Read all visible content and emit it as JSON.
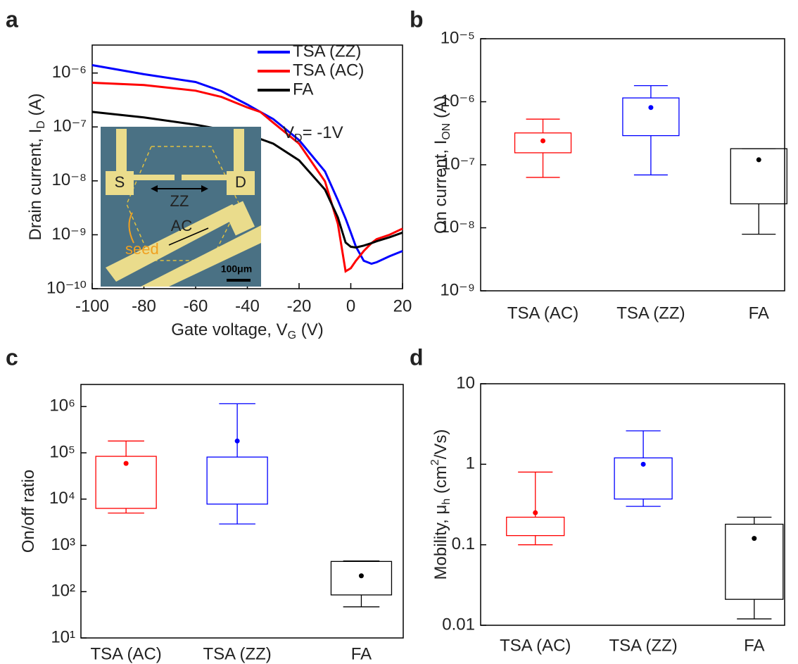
{
  "chart_data": [
    {
      "panel": "a",
      "type": "line",
      "log_y": true,
      "legend": "upper right",
      "x": [
        -100,
        -80,
        -60,
        -50,
        -40,
        -35,
        -30,
        -20,
        -10,
        -5,
        -2,
        0,
        2,
        5,
        8,
        10,
        15,
        20
      ],
      "series": [
        {
          "name": "TSA (ZZ)",
          "color": "#0000ff",
          "values": [
            1.4e-06,
            9.5e-07,
            6.8e-07,
            4.6e-07,
            2.6e-07,
            1.9e-07,
            1.4e-07,
            5.7e-08,
            1.5e-08,
            4.4e-09,
            2e-09,
            1.1e-09,
            6e-10,
            3.3e-10,
            2.9e-10,
            3.1e-10,
            4e-10,
            5e-10
          ]
        },
        {
          "name": "TSA (AC)",
          "color": "#ff0000",
          "values": [
            6.6e-07,
            6e-07,
            4.7e-07,
            3.6e-07,
            2.3e-07,
            1.9e-07,
            1.2e-07,
            4.9e-08,
            9.8e-09,
            1.6e-09,
            2.1e-10,
            2.4e-10,
            3.3e-10,
            5e-10,
            7e-10,
            8.3e-10,
            1e-09,
            1.3e-09
          ]
        },
        {
          "name": "FA",
          "color": "#000000",
          "values": [
            1.9e-07,
            1.5e-07,
            1.1e-07,
            9e-08,
            7e-08,
            6e-08,
            4.9e-08,
            2.4e-08,
            6.9e-09,
            2.1e-09,
            7.2e-10,
            6e-10,
            5.8e-10,
            6.3e-10,
            7e-10,
            7.6e-10,
            9e-10,
            1.1e-09
          ]
        }
      ],
      "xlim": [
        -100,
        20
      ],
      "xticks": [
        -100,
        -80,
        -60,
        -40,
        -20,
        0,
        20
      ],
      "ylim": [
        1e-10,
        3.3e-06
      ],
      "yticks": [
        {
          "value": 1e-10,
          "label": "10⁻¹⁰"
        },
        {
          "value": 1e-09,
          "label": "10⁻⁹"
        },
        {
          "value": 1e-08,
          "label": "10⁻⁸"
        },
        {
          "value": 1e-07,
          "label": "10⁻⁷"
        },
        {
          "value": 1e-06,
          "label": "10⁻⁶"
        }
      ],
      "xlabel": [
        {
          "t": "Gate voltage, V"
        },
        {
          "sub": "G"
        },
        {
          "t": " (V)"
        }
      ],
      "ylabel": [
        {
          "t": "Drain current, I"
        },
        {
          "sub": "D"
        },
        {
          "t": " (A)"
        }
      ],
      "annotation": [
        {
          "t": "V"
        },
        {
          "sub": "D"
        },
        {
          "t": "= -1V"
        }
      ],
      "inset": {
        "labels": [
          "S",
          "D",
          "ZZ",
          "AC",
          "seed",
          "100μm"
        ]
      }
    },
    {
      "panel": "b",
      "type": "box",
      "log_y": true,
      "categories": [
        "TSA (AC)",
        "TSA (ZZ)",
        "FA"
      ],
      "colors": [
        "#ff0000",
        "#0000ff",
        "#000000"
      ],
      "low": [
        6.3e-08,
        6.9e-08,
        7.9e-09
      ],
      "q1": [
        1.55e-07,
        2.9e-07,
        2.4e-08
      ],
      "q3": [
        3.2e-07,
        1.15e-06,
        1.8e-07
      ],
      "high": [
        5.3e-07,
        1.8e-06,
        1.8e-07
      ],
      "mean": [
        2.4e-07,
        8.1e-07,
        1.2e-07
      ],
      "ylim": [
        1e-09,
        1e-05
      ],
      "yticks": [
        {
          "value": 1e-09,
          "label": "10⁻⁹"
        },
        {
          "value": 1e-08,
          "label": "10⁻⁸"
        },
        {
          "value": 1e-07,
          "label": "10⁻⁷"
        },
        {
          "value": 1e-06,
          "label": "10⁻⁶"
        },
        {
          "value": 1e-05,
          "label": "10⁻⁵"
        }
      ],
      "ylabel": [
        {
          "t": "On current, I"
        },
        {
          "sub": "ON"
        },
        {
          "t": " (A)"
        }
      ]
    },
    {
      "panel": "c",
      "type": "box",
      "log_y": true,
      "categories": [
        "TSA (AC)",
        "TSA (ZZ)",
        "FA"
      ],
      "colors": [
        "#ff0000",
        "#0000ff",
        "#000000"
      ],
      "low": [
        5000,
        2900,
        47
      ],
      "q1": [
        6300,
        7800,
        85
      ],
      "q3": [
        84000,
        81000,
        450
      ],
      "high": [
        180000,
        1150000,
        460
      ],
      "mean": [
        59000,
        180000,
        220
      ],
      "ylim": [
        10,
        3000000
      ],
      "yticks": [
        {
          "value": 10,
          "label": "10¹"
        },
        {
          "value": 100,
          "label": "10²"
        },
        {
          "value": 1000,
          "label": "10³"
        },
        {
          "value": 10000,
          "label": "10⁴"
        },
        {
          "value": 100000,
          "label": "10⁵"
        },
        {
          "value": 1000000,
          "label": "10⁶"
        }
      ],
      "ylabel": [
        {
          "t": "On/off ratio"
        }
      ]
    },
    {
      "panel": "d",
      "type": "box",
      "log_y": true,
      "categories": [
        "TSA (AC)",
        "TSA (ZZ)",
        "FA"
      ],
      "colors": [
        "#ff0000",
        "#0000ff",
        "#000000"
      ],
      "low": [
        0.1,
        0.3,
        0.012
      ],
      "q1": [
        0.13,
        0.37,
        0.021
      ],
      "q3": [
        0.22,
        1.2,
        0.18
      ],
      "high": [
        0.8,
        2.6,
        0.22
      ],
      "mean": [
        0.25,
        1.0,
        0.12
      ],
      "ylim": [
        0.01,
        10
      ],
      "yticks": [
        0.01,
        0.1,
        1,
        10
      ],
      "ylabel": [
        {
          "t": "Mobility, μ"
        },
        {
          "sub": "h"
        },
        {
          "t": " (cm"
        },
        {
          "sup": "2"
        },
        {
          "t": "/Vs)"
        }
      ]
    }
  ]
}
